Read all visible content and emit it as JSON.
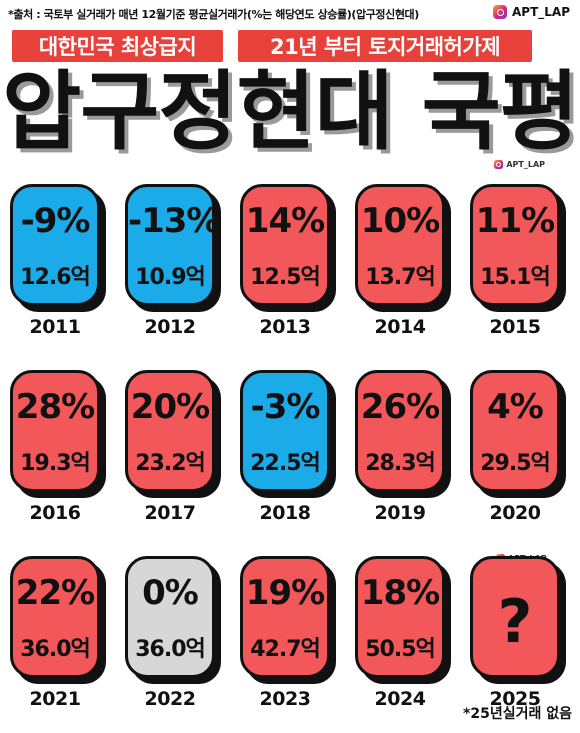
{
  "source": "*출처 : 국토부 실거래가 매년 12월기준 평균실거래가(%는 해당연도 상승률)(압구정신현대)",
  "handle": "APT_LAP",
  "tags": [
    "대한민국 최상급지",
    "21년 부터 토지거래허가제"
  ],
  "title": "압구정현대 국평",
  "colors": {
    "up": "#f2585a",
    "down": "#1aabe8",
    "flat": "#d7d7d7",
    "unknown": "#f2585a",
    "tag": "#e8403a"
  },
  "cards": [
    {
      "year": "2011",
      "change": "-9%",
      "price": "12.6억",
      "trend": "down"
    },
    {
      "year": "2012",
      "change": "-13%",
      "price": "10.9억",
      "trend": "down"
    },
    {
      "year": "2013",
      "change": "14%",
      "price": "12.5억",
      "trend": "up"
    },
    {
      "year": "2014",
      "change": "10%",
      "price": "13.7억",
      "trend": "up"
    },
    {
      "year": "2015",
      "change": "11%",
      "price": "15.1억",
      "trend": "up"
    },
    {
      "year": "2016",
      "change": "28%",
      "price": "19.3억",
      "trend": "up"
    },
    {
      "year": "2017",
      "change": "20%",
      "price": "23.2억",
      "trend": "up"
    },
    {
      "year": "2018",
      "change": "-3%",
      "price": "22.5억",
      "trend": "down"
    },
    {
      "year": "2019",
      "change": "26%",
      "price": "28.3억",
      "trend": "up"
    },
    {
      "year": "2020",
      "change": "4%",
      "price": "29.5억",
      "trend": "up"
    },
    {
      "year": "2021",
      "change": "22%",
      "price": "36.0억",
      "trend": "up"
    },
    {
      "year": "2022",
      "change": "0%",
      "price": "36.0억",
      "trend": "flat"
    },
    {
      "year": "2023",
      "change": "19%",
      "price": "42.7억",
      "trend": "up"
    },
    {
      "year": "2024",
      "change": "18%",
      "price": "50.5억",
      "trend": "up"
    },
    {
      "year": "2025",
      "change": "?",
      "price": "",
      "trend": "unknown"
    }
  ],
  "note": "*25년실거래 없음"
}
